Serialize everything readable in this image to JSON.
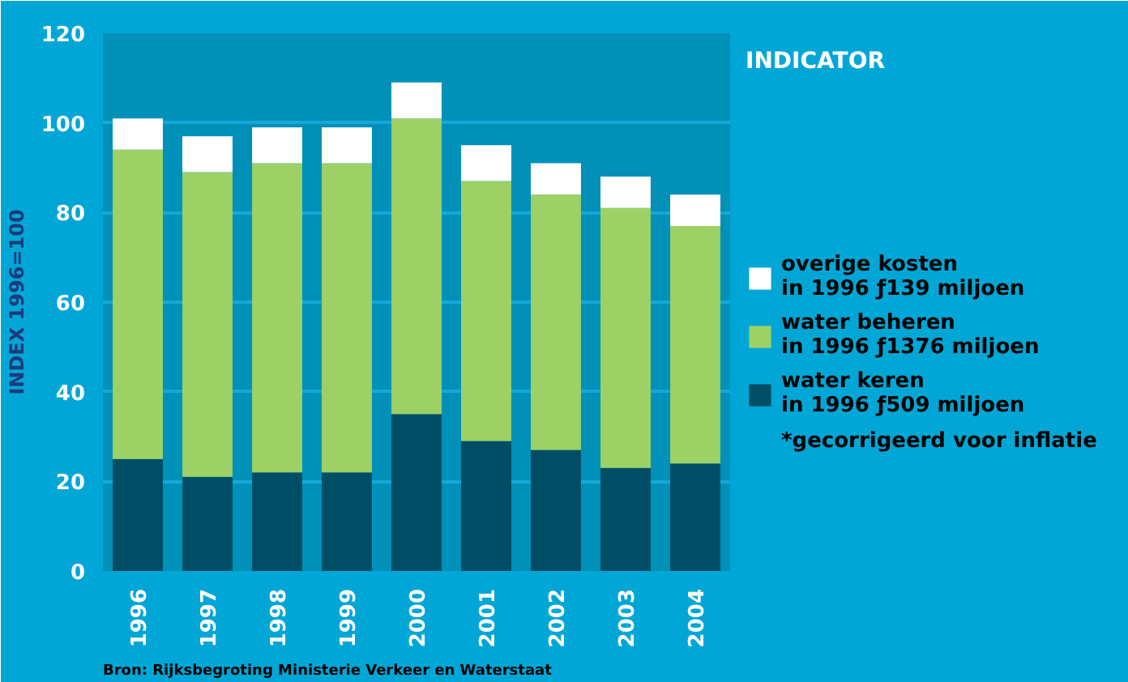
{
  "chart_data": {
    "type": "bar",
    "stacked": true,
    "ylabel": "INDEX 1996=100",
    "categories": [
      "1996",
      "1997",
      "1998",
      "1999",
      "2000",
      "2001",
      "2002",
      "2003",
      "2004"
    ],
    "series": [
      {
        "name": "water keren\nin 1996 ƒ509 miljoen",
        "color": "#004e66",
        "values": [
          25,
          21,
          22,
          22,
          35,
          29,
          27,
          23,
          24
        ]
      },
      {
        "name": "water beheren\nin 1996 ƒ1376 miljoen",
        "color": "#9dd165",
        "values": [
          69,
          68,
          69,
          69,
          66,
          58,
          57,
          58,
          53
        ]
      },
      {
        "name": "overige kosten\nin 1996 ƒ139 miljoen",
        "color": "#ffffff",
        "values": [
          7,
          8,
          8,
          8,
          8,
          8,
          7,
          7,
          7
        ]
      }
    ],
    "ylim": [
      0,
      120
    ],
    "yticks": [
      0,
      20,
      40,
      60,
      80,
      100,
      120
    ],
    "grid": "y",
    "legend": "right",
    "annotations": [
      "INDICATOR",
      "*gecorrigeerd voor inflatie",
      "Bron: Rijksbegroting Ministerie Verkeer en Waterstaat"
    ]
  }
}
